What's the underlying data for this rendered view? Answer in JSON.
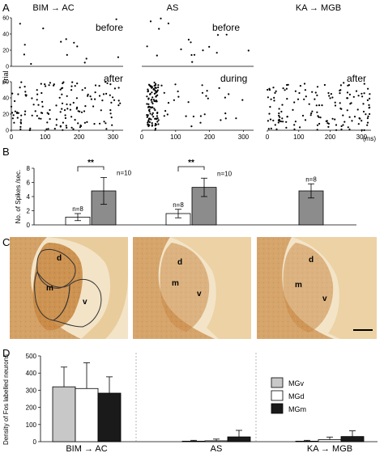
{
  "panel_letters": {
    "a": "A",
    "b": "B",
    "c": "C",
    "d": "D"
  },
  "conditions": {
    "bim_ac": "BIM → AC",
    "as": "AS",
    "ka_mgb": "KA → MGB"
  },
  "raster": {
    "ylabel": "Trial",
    "x_unit": "(ms)",
    "x_ticks": [
      "0",
      "100",
      "200",
      "300"
    ],
    "y_ticks": [
      "0",
      "20",
      "40",
      "60"
    ],
    "labels": {
      "before": "before",
      "after": "after",
      "during": "during"
    }
  },
  "chart_data": [
    {
      "type": "scatter",
      "panel": "A raster plots (illustrative spike trains)",
      "xlabel": "(ms)",
      "ylabel": "Trial",
      "xlim": [
        0,
        330
      ],
      "ylim": [
        0,
        60
      ]
    },
    {
      "type": "bar",
      "panel": "B",
      "ylabel": "No. of Spikes /sec.",
      "ylim": [
        0,
        8
      ],
      "y_ticks": [
        "0",
        "2",
        "4",
        "6",
        "8"
      ],
      "groups": [
        "BIM → AC",
        "AS",
        "KA → MGB"
      ],
      "series": [
        {
          "name": "before",
          "color": "#ffffff",
          "values": [
            1.1,
            1.6,
            null
          ],
          "errors": [
            0.5,
            0.6,
            null
          ],
          "n_labels": [
            "n=8",
            "n=8",
            null
          ]
        },
        {
          "name": "after/during",
          "color": "#8c8c8c",
          "values": [
            4.8,
            5.3,
            4.8
          ],
          "errors": [
            1.9,
            1.3,
            1.0
          ],
          "n_labels": [
            "n=10",
            "n=10",
            "n=8"
          ]
        }
      ],
      "significance": [
        "**",
        "**"
      ]
    },
    {
      "type": "bar",
      "panel": "D",
      "ylabel": "Density of Fos labelled neurons",
      "ylim": [
        0,
        500
      ],
      "y_ticks": [
        "0",
        "100",
        "200",
        "300",
        "400",
        "500"
      ],
      "groups": [
        "BIM → AC",
        "AS",
        "KA → MGB"
      ],
      "series": [
        {
          "name": "MGv",
          "color": "#c8c8c8",
          "values": [
            320,
            3,
            3
          ],
          "errors": [
            115,
            5,
            5
          ]
        },
        {
          "name": "MGd",
          "color": "#ffffff",
          "values": [
            310,
            5,
            12
          ],
          "errors": [
            150,
            10,
            15
          ]
        },
        {
          "name": "MGm",
          "color": "#1a1a1a",
          "values": [
            283,
            28,
            30
          ],
          "errors": [
            95,
            38,
            33
          ]
        }
      ],
      "legend": [
        "MGv",
        "MGd",
        "MGm"
      ]
    }
  ],
  "histology": {
    "region_labels": {
      "d": "d",
      "m": "m",
      "v": "v"
    },
    "tissue_color": "#c9863d",
    "background_color": "#f1e1c4"
  }
}
